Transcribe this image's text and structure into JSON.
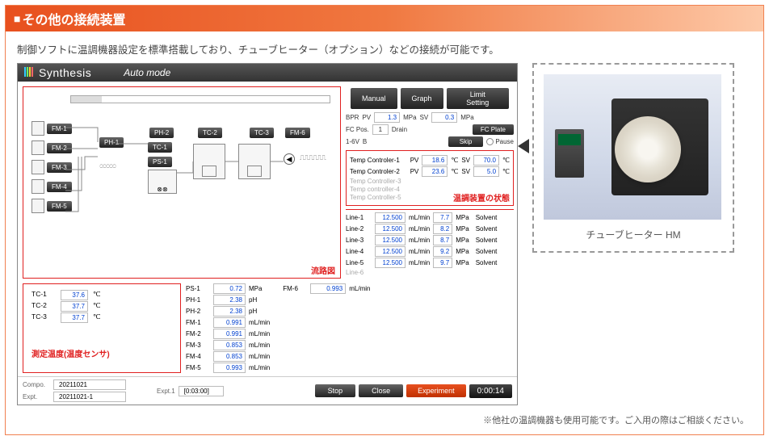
{
  "section_title": "その他の接続装置",
  "description": "制御ソフトに温調機器設定を標準搭載しており、チューブヒーター（オプション）などの接続が可能です。",
  "app": {
    "title": "Synthesis",
    "mode": "Auto mode",
    "top_buttons": {
      "manual": "Manual",
      "graph": "Graph",
      "limit": "Limit Setting"
    },
    "bpr": {
      "label": "BPR",
      "pv_label": "PV",
      "pv": "1.3",
      "pv_unit": "MPa",
      "sv_label": "SV",
      "sv": "0.3",
      "sv_unit": "MPa"
    },
    "fcpos": {
      "label": "FC Pos.",
      "value": "1",
      "drain": "Drain",
      "fcplate": "FC Plate"
    },
    "v16v": {
      "label": "1-6V",
      "value": "B",
      "skip": "Skip",
      "pause": "Pause"
    },
    "temp_box_label": "温調装置の状態",
    "temp_controllers": [
      {
        "name": "Temp Controler-1",
        "pv": "18.6",
        "pv_unit": "℃",
        "sv": "70.0",
        "sv_unit": "℃",
        "active": true
      },
      {
        "name": "Temp Controler-2",
        "pv": "23.6",
        "pv_unit": "℃",
        "sv": "5.0",
        "sv_unit": "℃",
        "active": true
      },
      {
        "name": "Temp Controller-3",
        "active": false
      },
      {
        "name": "Temp controller-4",
        "active": false
      },
      {
        "name": "Temp Controller-5",
        "active": false
      }
    ],
    "lines": [
      {
        "name": "Line-1",
        "flow": "12.500",
        "flow_unit": "mL/min",
        "press": "7.7",
        "press_unit": "MPa",
        "solvent": "Solvent"
      },
      {
        "name": "Line-2",
        "flow": "12.500",
        "flow_unit": "mL/min",
        "press": "8.2",
        "press_unit": "MPa",
        "solvent": "Solvent"
      },
      {
        "name": "Line-3",
        "flow": "12.500",
        "flow_unit": "mL/min",
        "press": "8.7",
        "press_unit": "MPa",
        "solvent": "Solvent"
      },
      {
        "name": "Line-4",
        "flow": "12.500",
        "flow_unit": "mL/min",
        "press": "9.2",
        "press_unit": "MPa",
        "solvent": "Solvent"
      },
      {
        "name": "Line-5",
        "flow": "12.500",
        "flow_unit": "mL/min",
        "press": "9.7",
        "press_unit": "MPa",
        "solvent": "Solvent"
      },
      {
        "name": "Line-6",
        "active": false
      }
    ],
    "flow_label": "流路図",
    "flow_nodes": {
      "fm": [
        "FM-1",
        "FM-2",
        "FM-3",
        "FM-4",
        "FM-5"
      ],
      "ph1": "PH-1",
      "ph2": "PH-2",
      "tc1": "TC-1",
      "ps1": "PS-1",
      "tc2": "TC-2",
      "tc3": "TC-3",
      "fm6": "FM-6"
    },
    "tc_block_label": "測定温度(温度センサ)",
    "tc_list": [
      {
        "name": "TC-1",
        "val": "37.6",
        "unit": "℃"
      },
      {
        "name": "TC-2",
        "val": "37.7",
        "unit": "℃"
      },
      {
        "name": "TC-3",
        "val": "37.7",
        "unit": "℃"
      }
    ],
    "ps_list": [
      {
        "name": "PS-1",
        "val": "0.72",
        "unit": "MPa"
      },
      {
        "name": "PH-1",
        "val": "2.38",
        "unit": "pH"
      },
      {
        "name": "PH-2",
        "val": "2.38",
        "unit": "pH"
      },
      {
        "name": "FM-1",
        "val": "0.991",
        "unit": "mL/min"
      },
      {
        "name": "FM-2",
        "val": "0.991",
        "unit": "mL/min"
      },
      {
        "name": "FM-3",
        "val": "0.853",
        "unit": "mL/min"
      },
      {
        "name": "FM-4",
        "val": "0.853",
        "unit": "mL/min"
      },
      {
        "name": "FM-5",
        "val": "0.993",
        "unit": "mL/min"
      }
    ],
    "fm6_row": {
      "name": "FM-6",
      "val": "0.993",
      "unit": "mL/min"
    },
    "footer": {
      "compo_label": "Compo.",
      "compo": "20211021",
      "expt_label": "Expt.",
      "expt": "20211021-1",
      "expt1_label": "Expt.1",
      "expt1": "[0:03:00]",
      "stop": "Stop",
      "close": "Close",
      "experiment": "Experiment",
      "time": "0:00:14"
    }
  },
  "photo_caption": "チューブヒーター HM",
  "footnote": "※他社の温調機器も使用可能です。ご入用の際はご相談ください。",
  "colors": {
    "accent": "#e8501e",
    "red": "#e02020",
    "blue": "#0040d0"
  }
}
